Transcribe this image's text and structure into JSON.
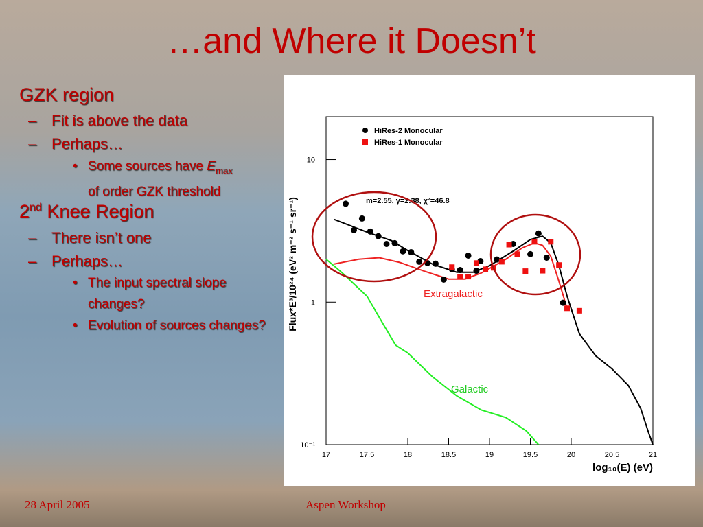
{
  "slide": {
    "title": "…and Where it Doesn’t",
    "bullets": [
      {
        "text": "GZK region",
        "items": [
          {
            "text": "Fit is above the data"
          },
          {
            "text": "Perhaps…",
            "items": [
              {
                "pre": "Some sources have ",
                "em": "E",
                "sub": "max",
                "post": "of order GZK threshold"
              }
            ]
          }
        ]
      },
      {
        "pre": "2",
        "sup": "nd",
        "post": " Knee Region",
        "items": [
          {
            "text": "There isn’t one"
          },
          {
            "text": "Perhaps…",
            "items": [
              {
                "text": "The input spectral slope changes?"
              },
              {
                "text": "Evolution of sources changes?"
              }
            ]
          }
        ]
      }
    ],
    "footer_left": "28 April 2005",
    "footer_center": "Aspen Workshop"
  },
  "chart_data": {
    "type": "scatter",
    "log_y": true,
    "xlabel": "log₁₀(E) (eV)",
    "ylabel": "Flux*E³/10²⁴ (eV² m⁻² s⁻¹ sr⁻¹)",
    "xlim": [
      17,
      21
    ],
    "xticks": [
      17,
      17.5,
      18,
      18.5,
      19,
      19.5,
      20,
      20.5,
      21
    ],
    "ylim": [
      0.1,
      20
    ],
    "yticks": [
      {
        "value": 0.1,
        "label": "10⁻¹"
      },
      1,
      10
    ],
    "legend": "upper left",
    "annotations": [
      "m=2.55, γ=2.38, χ²=46.8",
      "Extragalactic",
      "Galactic"
    ],
    "series": [
      {
        "name": "HiRes-2 Monocular",
        "color": "#000000",
        "marker": "circle",
        "x": [
          17.24,
          17.34,
          17.44,
          17.54,
          17.64,
          17.74,
          17.84,
          17.94,
          18.04,
          18.14,
          18.24,
          18.34,
          18.44,
          18.54,
          18.64,
          18.74,
          18.84,
          18.89,
          19.09,
          19.29,
          19.5,
          19.6,
          19.7,
          19.9
        ],
        "values": [
          4.9,
          3.2,
          3.86,
          3.13,
          2.9,
          2.56,
          2.59,
          2.27,
          2.24,
          1.92,
          1.88,
          1.86,
          1.44,
          1.7,
          1.68,
          2.12,
          1.66,
          1.94,
          1.99,
          2.56,
          2.17,
          3.03,
          2.05,
          0.99
        ]
      },
      {
        "name": "HiRes-1 Monocular",
        "color": "#ee1111",
        "marker": "square",
        "x": [
          18.54,
          18.64,
          18.74,
          18.84,
          18.95,
          19.05,
          19.15,
          19.24,
          19.34,
          19.44,
          19.55,
          19.65,
          19.75,
          19.85,
          19.95,
          20.1
        ],
        "values": [
          1.76,
          1.51,
          1.51,
          1.88,
          1.7,
          1.74,
          1.92,
          2.53,
          2.17,
          1.65,
          2.65,
          1.66,
          2.65,
          1.82,
          0.905,
          0.87
        ]
      }
    ],
    "lines": [
      {
        "color": "#000000",
        "x": [
          17.1,
          17.5,
          17.8,
          18,
          18.3,
          18.6,
          18.8,
          19,
          19.3,
          19.5,
          19.65,
          19.75,
          19.85,
          19.95,
          20.1,
          20.3,
          20.5,
          20.7,
          20.85,
          20.95,
          21
        ],
        "values": [
          3.8,
          3.1,
          2.7,
          2.3,
          1.85,
          1.62,
          1.62,
          1.8,
          2.3,
          2.75,
          2.9,
          2.6,
          1.8,
          1.1,
          0.6,
          0.42,
          0.34,
          0.26,
          0.18,
          0.12,
          0.1
        ]
      },
      {
        "color": "#ee2222",
        "x": [
          17.1,
          17.4,
          17.65,
          17.9,
          18.2,
          18.5,
          18.7,
          18.9,
          19.2,
          19.4,
          19.55,
          19.65,
          19.75,
          19.85,
          19.95
        ],
        "values": [
          1.85,
          2,
          2.05,
          1.9,
          1.65,
          1.45,
          1.45,
          1.6,
          2,
          2.4,
          2.6,
          2.5,
          2.1,
          1.4,
          0.9
        ]
      },
      {
        "color": "#22ee22",
        "x": [
          17,
          17.2,
          17.5,
          17.7,
          17.85,
          18,
          18.3,
          18.6,
          18.9,
          19.2,
          19.45,
          19.6
        ],
        "values": [
          2,
          1.6,
          1.1,
          0.7,
          0.5,
          0.44,
          0.3,
          0.22,
          0.175,
          0.155,
          0.125,
          0.1
        ]
      }
    ]
  }
}
